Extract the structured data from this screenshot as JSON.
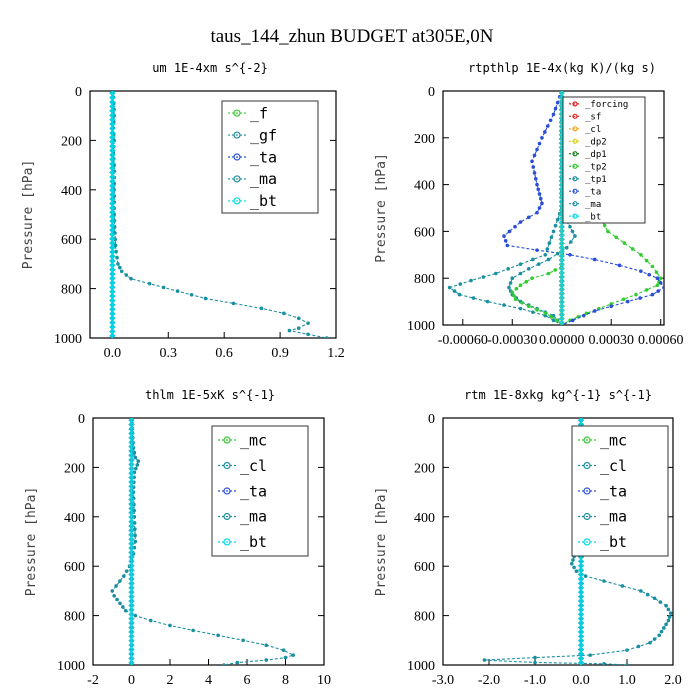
{
  "title": "taus_144_zhun  BUDGET at305E,0N",
  "colors": {
    "green": "#33cc33",
    "teal": "#1a8fa0",
    "blue": "#2a4fd6",
    "cyan": "#00d8e8",
    "red": "#e8201c",
    "orange": "#f0a020",
    "yellow": "#d8d020",
    "darkgreen": "#208020"
  },
  "chart_data": [
    {
      "type": "line",
      "title": "um   1E-4xm s^{-2}",
      "ylabel": "Pressure [hPa]",
      "xlim": [
        -0.12,
        1.2
      ],
      "ylim": [
        1000,
        0
      ],
      "xticks": [
        0.0,
        0.3,
        0.6,
        0.9,
        1.2
      ],
      "xtick_labels": [
        "0.0",
        "0.3",
        "0.6",
        "0.9",
        "1.2"
      ],
      "yticks": [
        0,
        200,
        400,
        600,
        800,
        1000
      ],
      "ytick_labels": [
        "0",
        "200",
        "400",
        "600",
        "800",
        "1000"
      ],
      "legend_position": "top-right",
      "legend_font": 15,
      "series": [
        {
          "name": "_f",
          "color": "#33cc33",
          "x": [
            0,
            0
          ],
          "y": [
            0,
            1000
          ]
        },
        {
          "name": "_gf",
          "color": "#1a8fa0",
          "x": [
            0,
            0
          ],
          "y": [
            0,
            1000
          ]
        },
        {
          "name": "_ta",
          "color": "#2a4fd6",
          "x": [
            0,
            0
          ],
          "y": [
            0,
            1000
          ]
        },
        {
          "name": "_ma",
          "color": "#1a8fa0",
          "x": [
            0,
            0
          ],
          "y": [
            0,
            1000
          ]
        },
        {
          "name": "_bt",
          "color": "#00d8e8",
          "x": [
            0,
            0
          ],
          "y": [
            0,
            1000
          ]
        },
        {
          "name": "",
          "color": "#1a8fa0",
          "x": [
            0.005,
            0.01,
            0.005,
            0.01,
            0.005,
            0.01,
            0.01,
            0.01,
            0.015,
            0.02,
            0.03,
            0.05,
            0.1,
            0.2,
            0.35,
            0.5,
            0.65,
            0.8,
            0.92,
            1.0,
            1.05,
            1.0,
            0.95,
            1.05,
            1.15
          ],
          "y": [
            0,
            100,
            150,
            200,
            250,
            300,
            400,
            500,
            600,
            650,
            700,
            730,
            760,
            780,
            810,
            840,
            860,
            880,
            900,
            920,
            940,
            960,
            970,
            985,
            1000
          ]
        }
      ]
    },
    {
      "type": "line",
      "title": "rtpthlp   1E-4x(kg K)/(kg s)",
      "ylabel": "Pressure [hPa]",
      "xlim": [
        -0.00072,
        0.00062
      ],
      "ylim": [
        1000,
        0
      ],
      "xticks": [
        -0.0006,
        -0.0003,
        0.0,
        0.0003,
        0.0006
      ],
      "xtick_labels": [
        "-0.00060",
        "-0.00030",
        "0.00000",
        "0.00030",
        "0.00060"
      ],
      "yticks": [
        0,
        200,
        400,
        600,
        800,
        1000
      ],
      "ytick_labels": [
        "0",
        "200",
        "400",
        "600",
        "800",
        "1000"
      ],
      "legend_position": "top-right",
      "legend_font": 9,
      "series": [
        {
          "name": "_forcing",
          "color": "#e8201c",
          "x": [
            0,
            0
          ],
          "y": [
            0,
            1000
          ]
        },
        {
          "name": "_sf",
          "color": "#e8201c",
          "x": [
            0,
            0
          ],
          "y": [
            0,
            1000
          ]
        },
        {
          "name": "_cl",
          "color": "#f0a020",
          "x": [
            0,
            0
          ],
          "y": [
            0,
            1000
          ]
        },
        {
          "name": "_dp2",
          "color": "#d8d020",
          "x": [
            0,
            0
          ],
          "y": [
            0,
            1000
          ]
        },
        {
          "name": "_dp1",
          "color": "#208020",
          "x": [
            0,
            0
          ],
          "y": [
            0,
            1000
          ]
        },
        {
          "name": "_tp2",
          "color": "#33cc33",
          "x": [
            0,
            2e-05,
            5e-05,
            0.0001,
            0.00015,
            0.0002,
            0.00028,
            0.00038,
            0.00048,
            0.00055,
            0.0006,
            0.00058,
            0.00045,
            0.0003,
            0.00015,
            5e-05,
            0
          ],
          "y": [
            0,
            150,
            200,
            300,
            400,
            500,
            600,
            650,
            700,
            750,
            800,
            830,
            870,
            910,
            950,
            980,
            1000
          ]
        },
        {
          "name": "_tp1",
          "color": "#1a8fa0",
          "x": [
            0,
            0,
            -5e-05,
            -0.0001,
            -0.00025,
            -0.0004,
            -0.00055,
            -0.00068,
            -0.00062,
            -0.00045,
            -0.00025,
            -0.0001,
            0
          ],
          "y": [
            0,
            500,
            600,
            700,
            740,
            780,
            810,
            840,
            870,
            900,
            930,
            960,
            1000
          ]
        },
        {
          "name": "_ta",
          "color": "#2a4fd6",
          "x": [
            0,
            -5e-05,
            -0.00012,
            -0.00018,
            -0.00015,
            -0.00012,
            -0.00015,
            -0.00025,
            -0.00035,
            -0.00033,
            -0.00015,
            5e-05,
            0.0002,
            0.00035,
            0.00048,
            0.00058,
            0.00062,
            0.00055,
            0.0004,
            0.0002,
            0
          ],
          "y": [
            0,
            100,
            200,
            300,
            400,
            480,
            520,
            560,
            620,
            660,
            680,
            700,
            720,
            745,
            770,
            800,
            840,
            870,
            900,
            940,
            1000
          ]
        },
        {
          "name": "_ma",
          "color": "#1a8fa0",
          "x": [
            0,
            0,
            5e-05,
            8e-05,
            3e-05,
            -8e-05,
            -0.0002,
            -0.0003,
            -0.00032,
            -0.0003,
            -0.00025,
            -0.00015,
            -5e-05,
            0
          ],
          "y": [
            0,
            500,
            580,
            620,
            670,
            720,
            760,
            800,
            840,
            870,
            900,
            930,
            960,
            1000
          ]
        },
        {
          "name": "_bt",
          "color": "#00d8e8",
          "x": [
            0,
            0
          ],
          "y": [
            0,
            1000
          ]
        },
        {
          "name": "",
          "color": "#33cc33",
          "x": [
            0,
            -8e-05,
            -0.00018,
            -0.00025,
            -0.0003,
            -0.00028,
            -0.0002,
            -0.0001,
            -3e-05,
            0
          ],
          "y": [
            750,
            780,
            800,
            830,
            860,
            890,
            920,
            950,
            980,
            1000
          ]
        }
      ]
    },
    {
      "type": "line",
      "title": "thlm   1E-5xK s^{-1}",
      "ylabel": "Pressure [hPa]",
      "xlim": [
        -2,
        10
      ],
      "ylim": [
        1000,
        0
      ],
      "xticks": [
        -2,
        0,
        2,
        4,
        6,
        8,
        10
      ],
      "xtick_labels": [
        "-2",
        "0",
        "2",
        "4",
        "6",
        "8",
        "10"
      ],
      "yticks": [
        0,
        200,
        400,
        600,
        800,
        1000
      ],
      "ytick_labels": [
        "0",
        "200",
        "400",
        "600",
        "800",
        "1000"
      ],
      "legend_position": "top-right",
      "legend_font": 15,
      "series": [
        {
          "name": "_mc",
          "color": "#33cc33",
          "x": [
            0,
            0
          ],
          "y": [
            0,
            1000
          ]
        },
        {
          "name": "_cl",
          "color": "#1a8fa0",
          "x": [
            0,
            0
          ],
          "y": [
            0,
            1000
          ]
        },
        {
          "name": "_ta",
          "color": "#2a4fd6",
          "x": [
            0,
            0
          ],
          "y": [
            0,
            1000
          ]
        },
        {
          "name": "_ma",
          "color": "#1a8fa0",
          "x": [
            0,
            0
          ],
          "y": [
            0,
            1000
          ]
        },
        {
          "name": "_bt",
          "color": "#00d8e8",
          "x": [
            0,
            0
          ],
          "y": [
            0,
            1000
          ]
        },
        {
          "name": "",
          "color": "#1a8fa0",
          "x": [
            0,
            0.05,
            0.1,
            0.2,
            0.35,
            0.3,
            0.15,
            0.1,
            0.15,
            0.2,
            0.1,
            -0.1,
            -0.4,
            -0.8,
            -1.0,
            -0.9,
            -0.6,
            -0.3,
            0.2,
            1.0,
            2.0,
            3.2,
            4.5,
            5.8,
            7.0,
            7.9,
            8.4,
            8.0,
            7.0,
            5.5,
            4.8
          ],
          "y": [
            0,
            60,
            120,
            160,
            175,
            190,
            220,
            300,
            400,
            500,
            550,
            600,
            640,
            680,
            700,
            720,
            750,
            780,
            800,
            820,
            840,
            860,
            880,
            900,
            920,
            940,
            960,
            970,
            980,
            990,
            1000
          ]
        }
      ]
    },
    {
      "type": "line",
      "title": "rtm   1E-8xkg kg^{-1} s^{-1}",
      "ylabel": "Pressure [hPa]",
      "xlim": [
        -3,
        2
      ],
      "ylim": [
        1000,
        0
      ],
      "xticks": [
        -3,
        -2,
        -1,
        0,
        1,
        2
      ],
      "xtick_labels": [
        "-3.0",
        "-2.0",
        "-1.0",
        "0.0",
        "1.0",
        "2.0"
      ],
      "yticks": [
        0,
        200,
        400,
        600,
        800,
        1000
      ],
      "ytick_labels": [
        "0",
        "200",
        "400",
        "600",
        "800",
        "1000"
      ],
      "legend_position": "top-right",
      "legend_font": 15,
      "series": [
        {
          "name": "_mc",
          "color": "#33cc33",
          "x": [
            0,
            0
          ],
          "y": [
            0,
            1000
          ]
        },
        {
          "name": "_cl",
          "color": "#1a8fa0",
          "x": [
            0,
            0
          ],
          "y": [
            0,
            1000
          ]
        },
        {
          "name": "_ta",
          "color": "#2a4fd6",
          "x": [
            0,
            0
          ],
          "y": [
            0,
            1000
          ]
        },
        {
          "name": "_ma",
          "color": "#1a8fa0",
          "x": [
            0,
            0
          ],
          "y": [
            0,
            1000
          ]
        },
        {
          "name": "_bt",
          "color": "#00d8e8",
          "x": [
            0,
            0
          ],
          "y": [
            0,
            1000
          ]
        },
        {
          "name": "",
          "color": "#1a8fa0",
          "x": [
            0,
            -0.02,
            -0.05,
            -0.1,
            -0.05,
            -0.05,
            -0.1,
            -0.15,
            -0.2,
            -0.1,
            0.1,
            0.5,
            0.9,
            1.3,
            1.6,
            1.85,
            1.95,
            1.9,
            1.8,
            1.7,
            1.5,
            1.0,
            0.2,
            -1.0,
            -2.1,
            -1.0,
            0.5,
            1.0
          ],
          "y": [
            0,
            100,
            200,
            300,
            400,
            480,
            530,
            560,
            590,
            620,
            640,
            660,
            680,
            700,
            730,
            760,
            790,
            820,
            850,
            880,
            910,
            940,
            960,
            970,
            980,
            990,
            995,
            1000
          ]
        }
      ]
    }
  ]
}
